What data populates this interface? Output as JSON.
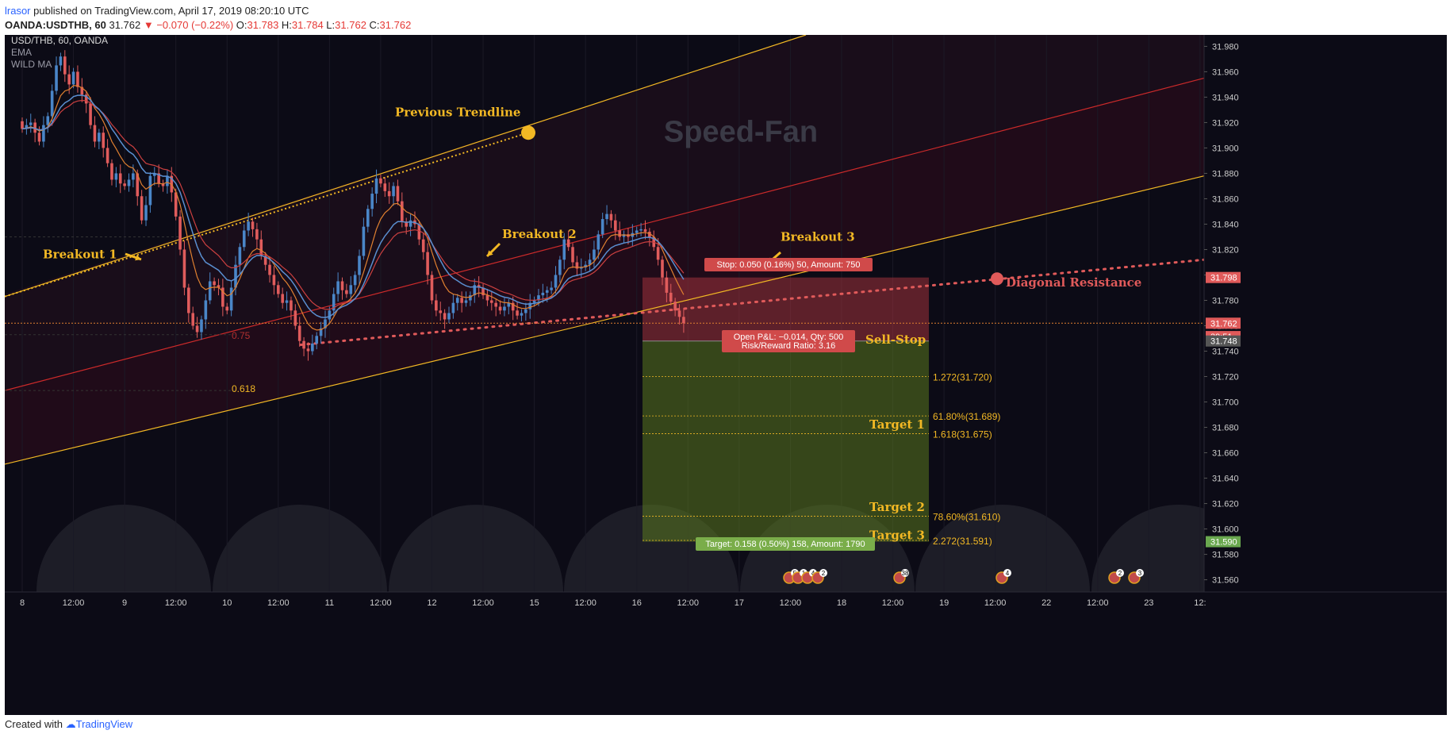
{
  "header": {
    "author": "lrasor",
    "published_text": " published on TradingView.com, April 17, 2019 08:20:10 UTC",
    "symbol_line": "OANDA:USDTHB, 60",
    "last": "31.762",
    "change": "▼ −0.070 (−0.22%)",
    "ohlc": {
      "O": "31.783",
      "H": "31.784",
      "L": "31.762",
      "C": "31.762"
    }
  },
  "legend": {
    "symbol": "USD/THB, 60, OANDA",
    "ind1": "EMA",
    "ind2": "WILD MA"
  },
  "footer": {
    "created_with": "Created with",
    "brand": "TradingView"
  },
  "colors": {
    "background": "#0c0b16",
    "up_candle": "#4a86c8",
    "down_candle": "#e05c5c",
    "gold": "#f2b824",
    "red_line": "#cc2a2a",
    "ema": "#e08030",
    "wild_ma": "#5a8fd0",
    "target_zone": "#59781f",
    "stop_zone": "#a0333d"
  },
  "chart_data": {
    "type": "candlestick",
    "title": "",
    "symbol": "USD/THB, 60, OANDA",
    "y_axis": {
      "ticks": [
        "31.980",
        "31.960",
        "31.940",
        "31.920",
        "31.900",
        "31.880",
        "31.860",
        "31.840",
        "31.820",
        "31.800",
        "31.780",
        "31.760",
        "31.740",
        "31.720",
        "31.700",
        "31.680",
        "31.660",
        "31.640",
        "31.620",
        "31.600",
        "31.580",
        "31.560"
      ],
      "range": [
        31.551,
        31.989
      ],
      "price_tags": [
        {
          "label": "31.798",
          "value": 31.798,
          "color": "#e05a5a"
        },
        {
          "label": "31.762",
          "value": 31.762,
          "color": "#e05a5a"
        },
        {
          "label": "39:51",
          "value": 31.7515,
          "color": "#e05a5a"
        },
        {
          "label": "31.748",
          "value": 31.748,
          "color": "#555555"
        },
        {
          "label": "31.590",
          "value": 31.59,
          "color": "#6aa84f"
        }
      ]
    },
    "x_axis": {
      "ticks": [
        {
          "label": "8",
          "index": 0
        },
        {
          "label": "12:00",
          "index": 12
        },
        {
          "label": "9",
          "index": 24
        },
        {
          "label": "12:00",
          "index": 36
        },
        {
          "label": "10",
          "index": 48
        },
        {
          "label": "12:00",
          "index": 60
        },
        {
          "label": "11",
          "index": 72
        },
        {
          "label": "12:00",
          "index": 84
        },
        {
          "label": "12",
          "index": 96
        },
        {
          "label": "12:00",
          "index": 108
        },
        {
          "label": "15",
          "index": 120
        },
        {
          "label": "12:00",
          "index": 132
        },
        {
          "label": "16",
          "index": 144
        },
        {
          "label": "12:00",
          "index": 156
        },
        {
          "label": "17",
          "index": 168
        },
        {
          "label": "12:00",
          "index": 180
        },
        {
          "label": "18",
          "index": 192
        },
        {
          "label": "12:00",
          "index": 204
        },
        {
          "label": "19",
          "index": 216
        },
        {
          "label": "12:00",
          "index": 228
        },
        {
          "label": "22",
          "index": 240
        },
        {
          "label": "12:00",
          "index": 252
        },
        {
          "label": "23",
          "index": 264
        },
        {
          "label": "12:",
          "index": 276
        }
      ]
    },
    "close": [
      31.915,
      31.918,
      31.92,
      31.912,
      31.905,
      31.918,
      31.925,
      31.945,
      31.965,
      31.972,
      31.958,
      31.95,
      31.96,
      31.948,
      31.942,
      31.935,
      31.918,
      31.905,
      31.912,
      31.9,
      31.888,
      31.875,
      31.88,
      31.872,
      31.87,
      31.875,
      31.88,
      31.862,
      31.843,
      31.855,
      31.878,
      31.88,
      31.872,
      31.87,
      31.878,
      31.865,
      31.846,
      31.82,
      31.79,
      31.77,
      31.76,
      31.755,
      31.765,
      31.78,
      31.795,
      31.792,
      31.79,
      31.775,
      31.772,
      31.79,
      31.808,
      31.822,
      31.835,
      31.842,
      31.836,
      31.828,
      31.815,
      31.808,
      31.8,
      31.792,
      31.785,
      31.778,
      31.78,
      31.772,
      31.76,
      31.748,
      31.742,
      31.74,
      31.746,
      31.752,
      31.758,
      31.765,
      31.772,
      31.785,
      31.795,
      31.788,
      31.785,
      31.792,
      31.8,
      31.815,
      31.838,
      31.852,
      31.864,
      31.876,
      31.872,
      31.866,
      31.862,
      31.87,
      31.858,
      31.842,
      31.838,
      31.843,
      31.84,
      31.828,
      31.818,
      31.8,
      31.78,
      31.772,
      31.77,
      31.765,
      31.77,
      31.778,
      31.782,
      31.778,
      31.78,
      31.784,
      31.792,
      31.79,
      31.784,
      31.78,
      31.778,
      31.775,
      31.772,
      31.775,
      31.778,
      31.772,
      31.768,
      31.77,
      31.773,
      31.778,
      31.78,
      31.784,
      31.786,
      31.788,
      31.79,
      31.8,
      31.812,
      31.828,
      31.822,
      31.81,
      31.805,
      31.806,
      31.808,
      31.812,
      31.82,
      31.832,
      31.844,
      31.848,
      31.843,
      31.835,
      31.83,
      31.832,
      31.83,
      31.833,
      31.835,
      31.836,
      31.834,
      31.83,
      31.822,
      31.812,
      31.798,
      31.786,
      31.779,
      31.772,
      31.767,
      31.762
    ],
    "tick_labels_note": "",
    "volume_profile_note": "",
    "annotations": {
      "title_watermark": "Speed-Fan",
      "labels": [
        {
          "text": "Previous Trendline",
          "color": "gold"
        },
        {
          "text": "Breakout 1",
          "color": "gold"
        },
        {
          "text": "Breakout 2",
          "color": "gold"
        },
        {
          "text": "Breakout 3",
          "color": "gold"
        },
        {
          "text": "Diagonal Resistance",
          "color": "red"
        },
        {
          "text": "Sell-Stop",
          "color": "gold"
        },
        {
          "text": "Target 1",
          "color": "gold"
        },
        {
          "text": "Target 2",
          "color": "gold"
        },
        {
          "text": "Target 3",
          "color": "gold"
        }
      ],
      "fib_levels": [
        {
          "label": "1.272(31.720)",
          "value": 31.72
        },
        {
          "label": "61.80%(31.689)",
          "value": 31.689
        },
        {
          "label": "1.618(31.675)",
          "value": 31.675
        },
        {
          "label": "78.60%(31.610)",
          "value": 31.61
        },
        {
          "label": "2.272(31.591)",
          "value": 31.591
        }
      ],
      "fan_labels": [
        {
          "text": "0.75"
        },
        {
          "text": "0.618"
        }
      ],
      "position": {
        "stop_text": "Stop: 0.050 (0.16%) 50, Amount: 750",
        "pnl_text": "Open P&L: −0.014, Qty: 500",
        "rr_text": "Risk/Reward Ratio: 3.16",
        "target_text": "Target: 0.158 (0.50%) 158, Amount: 1790",
        "stop_price": 31.798,
        "entry_price": 31.748,
        "target_price": 31.59
      },
      "event_badges": [
        "5",
        "1",
        "4",
        "2",
        "38",
        "4",
        "2",
        "3"
      ]
    }
  }
}
